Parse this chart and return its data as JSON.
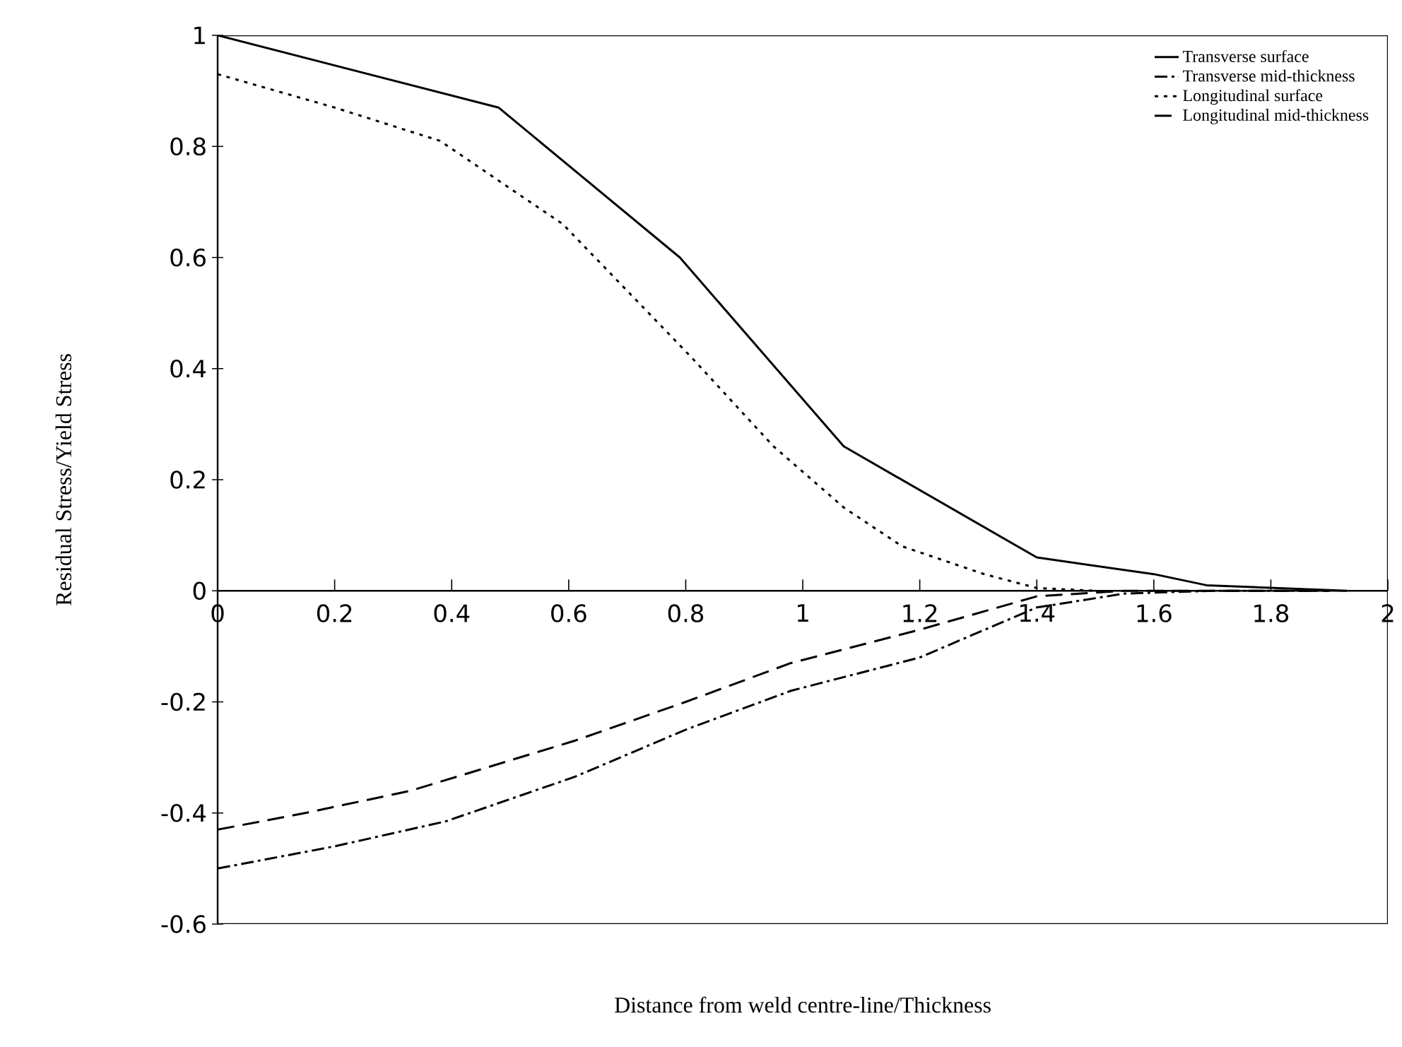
{
  "chart_data": {
    "type": "line",
    "xlabel": "Distance from weld centre-line/Thickness",
    "ylabel": "Residual Stress/Yield Stress",
    "xlim": [
      0,
      2
    ],
    "ylim": [
      -0.6,
      1
    ],
    "xticks": [
      0,
      0.2,
      0.4,
      0.6,
      0.8,
      1,
      1.2,
      1.4,
      1.6,
      1.8,
      2
    ],
    "yticks": [
      -0.6,
      -0.4,
      -0.2,
      0,
      0.2,
      0.4,
      0.6,
      0.8,
      1
    ],
    "grid": false,
    "legend": "top right",
    "marker": "none",
    "series": [
      {
        "name": "Transverse surface",
        "color": "#000000",
        "line_style": "solid",
        "x": [
          0,
          0.48,
          0.79,
          1.07,
          1.4,
          1.6,
          1.69,
          1.93
        ],
        "values": [
          1.0,
          0.87,
          0.6,
          0.26,
          0.06,
          0.03,
          0.01,
          0
        ]
      },
      {
        "name": "Transverse mid-thickness",
        "color": "#000000",
        "line_style": "dashdotted",
        "x": [
          0,
          0.2,
          0.39,
          0.61,
          0.8,
          0.98,
          1.2,
          1.4,
          1.55,
          1.7,
          1.9
        ],
        "values": [
          -0.5,
          -0.46,
          -0.415,
          -0.335,
          -0.25,
          -0.18,
          -0.12,
          -0.03,
          -0.005,
          0,
          0
        ]
      },
      {
        "name": "Longitudinal surface",
        "color": "#000000",
        "line_style": "dotted",
        "x": [
          0,
          0.2,
          0.38,
          0.59,
          0.81,
          0.95,
          1.07,
          1.17,
          1.31,
          1.4,
          1.5
        ],
        "values": [
          0.93,
          0.87,
          0.81,
          0.66,
          0.42,
          0.26,
          0.15,
          0.08,
          0.03,
          0.005,
          0
        ]
      },
      {
        "name": "Longitudinal mid-thickness",
        "color": "#000000",
        "line_style": "dashed",
        "x": [
          0,
          0.15,
          0.33,
          0.61,
          0.8,
          0.98,
          1.2,
          1.4,
          1.55,
          1.7,
          1.9
        ],
        "values": [
          -0.43,
          -0.4,
          -0.36,
          -0.27,
          -0.2,
          -0.13,
          -0.07,
          -0.01,
          0,
          0,
          0
        ]
      }
    ]
  }
}
